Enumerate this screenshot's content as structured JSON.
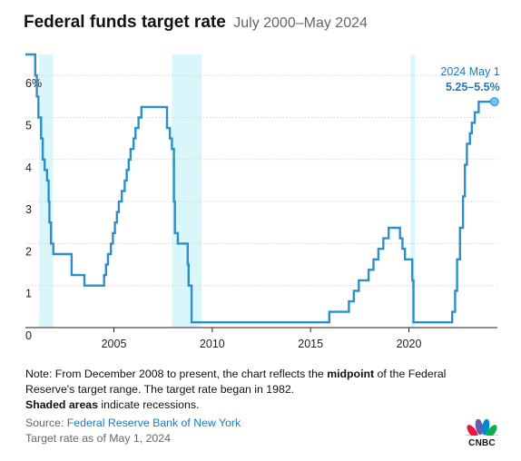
{
  "header": {
    "title": "Federal funds target rate",
    "subtitle": "July 2000–May 2024"
  },
  "chart_data": {
    "type": "line",
    "title": "Federal funds target rate",
    "subtitle": "July 2000–May 2024",
    "xlabel": "",
    "ylabel": "",
    "ylim": [
      0,
      6.5
    ],
    "xlim": [
      2000.5,
      2024.5
    ],
    "x_ticks": [
      2005,
      2010,
      2015,
      2020
    ],
    "x_tick_labels": [
      "2005",
      "2010",
      "2015",
      "2020"
    ],
    "y_ticks": [
      0,
      1,
      2,
      3,
      4,
      5,
      6
    ],
    "y_tick_labels": [
      "0",
      "1",
      "2",
      "3",
      "4",
      "5",
      "6%"
    ],
    "grid": "horizontal",
    "line_color": "#2d8fc9",
    "recession_color": "#d9f6fb",
    "recessions": [
      {
        "start": 2001.2,
        "end": 2001.9
      },
      {
        "start": 2007.95,
        "end": 2009.45
      },
      {
        "start": 2020.1,
        "end": 2020.3
      }
    ],
    "series": [
      {
        "type": "step",
        "x": [
          2000.5,
          2001.0,
          2001.08,
          2001.16,
          2001.3,
          2001.38,
          2001.48,
          2001.6,
          2001.68,
          2001.72,
          2001.8,
          2001.92,
          2002.85,
          2003.5,
          2004.5,
          2004.6,
          2004.7,
          2004.85,
          2004.95,
          2005.05,
          2005.15,
          2005.25,
          2005.4,
          2005.55,
          2005.65,
          2005.75,
          2005.85,
          2006.0,
          2006.1,
          2006.25,
          2006.4,
          2006.5,
          2007.7,
          2007.85,
          2007.95,
          2008.05,
          2008.1,
          2008.25,
          2008.3,
          2008.75,
          2008.8,
          2008.95,
          2015.95,
          2016.95,
          2017.2,
          2017.45,
          2017.95,
          2018.2,
          2018.45,
          2018.7,
          2018.97,
          2019.55,
          2019.67,
          2019.8,
          2020.17,
          2020.23,
          2022.2,
          2022.35,
          2022.45,
          2022.6,
          2022.75,
          2022.85,
          2022.95,
          2023.1,
          2023.2,
          2023.35,
          2023.55,
          2024.35
        ],
        "y": [
          6.5,
          6.0,
          5.5,
          5.0,
          4.5,
          4.0,
          3.75,
          3.5,
          3.0,
          2.5,
          2.0,
          1.75,
          1.25,
          1.0,
          1.25,
          1.5,
          1.75,
          2.0,
          2.25,
          2.5,
          2.75,
          3.0,
          3.25,
          3.5,
          3.75,
          4.0,
          4.25,
          4.5,
          4.75,
          5.0,
          5.25,
          5.25,
          4.75,
          4.5,
          4.25,
          3.0,
          2.25,
          2.0,
          2.0,
          1.5,
          1.0,
          0.125,
          0.375,
          0.625,
          0.875,
          1.125,
          1.375,
          1.625,
          1.875,
          2.125,
          2.375,
          2.125,
          1.875,
          1.625,
          1.125,
          0.125,
          0.375,
          0.875,
          1.625,
          2.375,
          3.125,
          3.875,
          4.375,
          4.625,
          4.875,
          5.125,
          5.375,
          5.375
        ]
      }
    ],
    "annotation": {
      "label": "2024 May 1",
      "value_label": "5.25–5.5%",
      "x": 2024.35,
      "y": 5.375
    }
  },
  "footer": {
    "note_prefix": "Note: From December 2008 to present, the chart reflects the ",
    "note_bold": "midpoint",
    "note_suffix": " of the Federal Reserve's target range. The target rate began in 1982.",
    "shaded_bold": "Shaded areas",
    "shaded_rest": " indicate recessions.",
    "source_label": "Source: ",
    "source_link": "Federal Reserve Bank of New York",
    "as_of": "Target rate as of May 1, 2024",
    "logo_text": "CNBC"
  }
}
